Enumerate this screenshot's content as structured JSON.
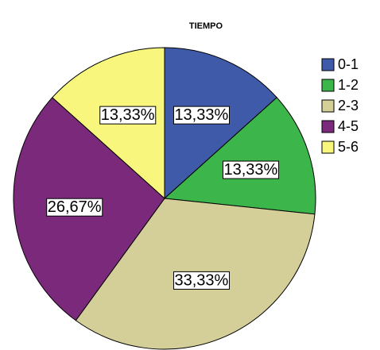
{
  "chart_data": {
    "type": "pie",
    "title": "TIEMPO",
    "categories": [
      "0-1",
      "1-2",
      "2-3",
      "4-5",
      "5-6"
    ],
    "values": [
      13.33,
      13.33,
      33.33,
      26.67,
      13.33
    ],
    "value_labels": [
      "13,33%",
      "13,33%",
      "33,33%",
      "26,67%",
      "13,33%"
    ],
    "colors": [
      "#3f5aa8",
      "#3cb54a",
      "#d4cf99",
      "#7b2a7b",
      "#f8f67c"
    ],
    "legend": "right"
  }
}
